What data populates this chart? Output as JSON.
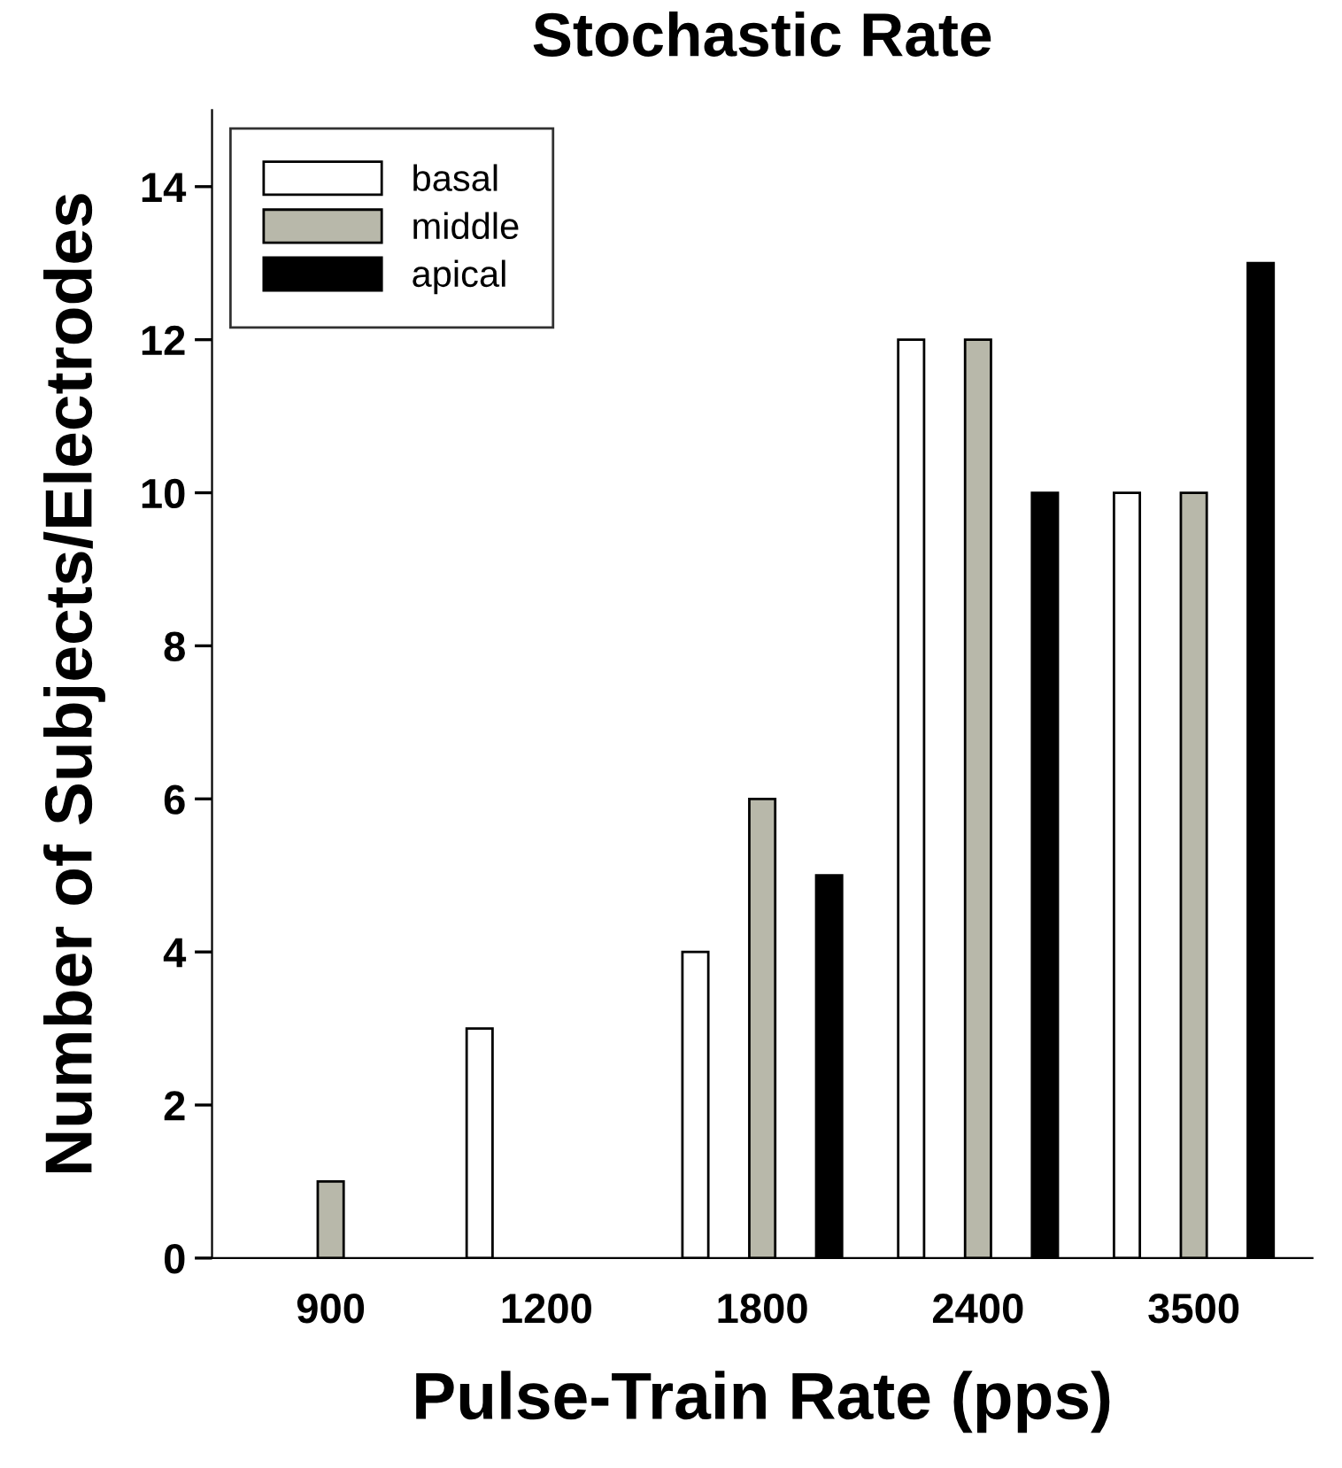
{
  "chart_data": {
    "type": "bar",
    "title": "Stochastic Rate",
    "xlabel": "Pulse-Train Rate (pps)",
    "ylabel": "Number of Subjects/Electrodes",
    "categories": [
      "900",
      "1200",
      "1800",
      "2400",
      "3500"
    ],
    "series": [
      {
        "name": "basal",
        "color": "#ffffff",
        "values": [
          null,
          3,
          4,
          12,
          10
        ]
      },
      {
        "name": "middle",
        "color": "#b8b8aa",
        "values": [
          1,
          null,
          6,
          12,
          10
        ]
      },
      {
        "name": "apical",
        "color": "#000000",
        "values": [
          null,
          null,
          5,
          10,
          13
        ]
      }
    ],
    "ylim": [
      0,
      15
    ],
    "yticks": [
      0,
      2,
      4,
      6,
      8,
      10,
      12,
      14
    ],
    "grid": false,
    "legend": "top left"
  }
}
